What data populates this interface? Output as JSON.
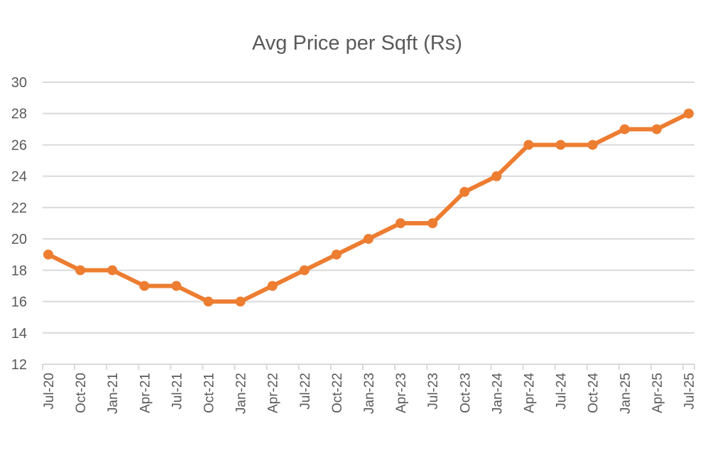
{
  "chart_data": {
    "type": "line",
    "title": "Avg Price per Sqft (Rs)",
    "xlabel": "",
    "ylabel": "",
    "categories": [
      "Jul-20",
      "Oct-20",
      "Jan-21",
      "Apr-21",
      "Jul-21",
      "Oct-21",
      "Jan-22",
      "Apr-22",
      "Jul-22",
      "Oct-22",
      "Jan-23",
      "Apr-23",
      "Jul-23",
      "Oct-23",
      "Jan-24",
      "Apr-24",
      "Jul-24",
      "Oct-24",
      "Jan-25",
      "Apr-25",
      "Jul-25"
    ],
    "values": [
      19,
      18,
      18,
      17,
      17,
      16,
      16,
      17,
      18,
      19,
      20,
      21,
      21,
      23,
      24,
      26,
      26,
      26,
      27,
      27,
      28
    ],
    "ylim": [
      12,
      30
    ],
    "yticks": [
      12,
      14,
      16,
      18,
      20,
      22,
      24,
      26,
      28,
      30
    ],
    "grid": true,
    "legend": "none",
    "color": "#ED7D31"
  }
}
